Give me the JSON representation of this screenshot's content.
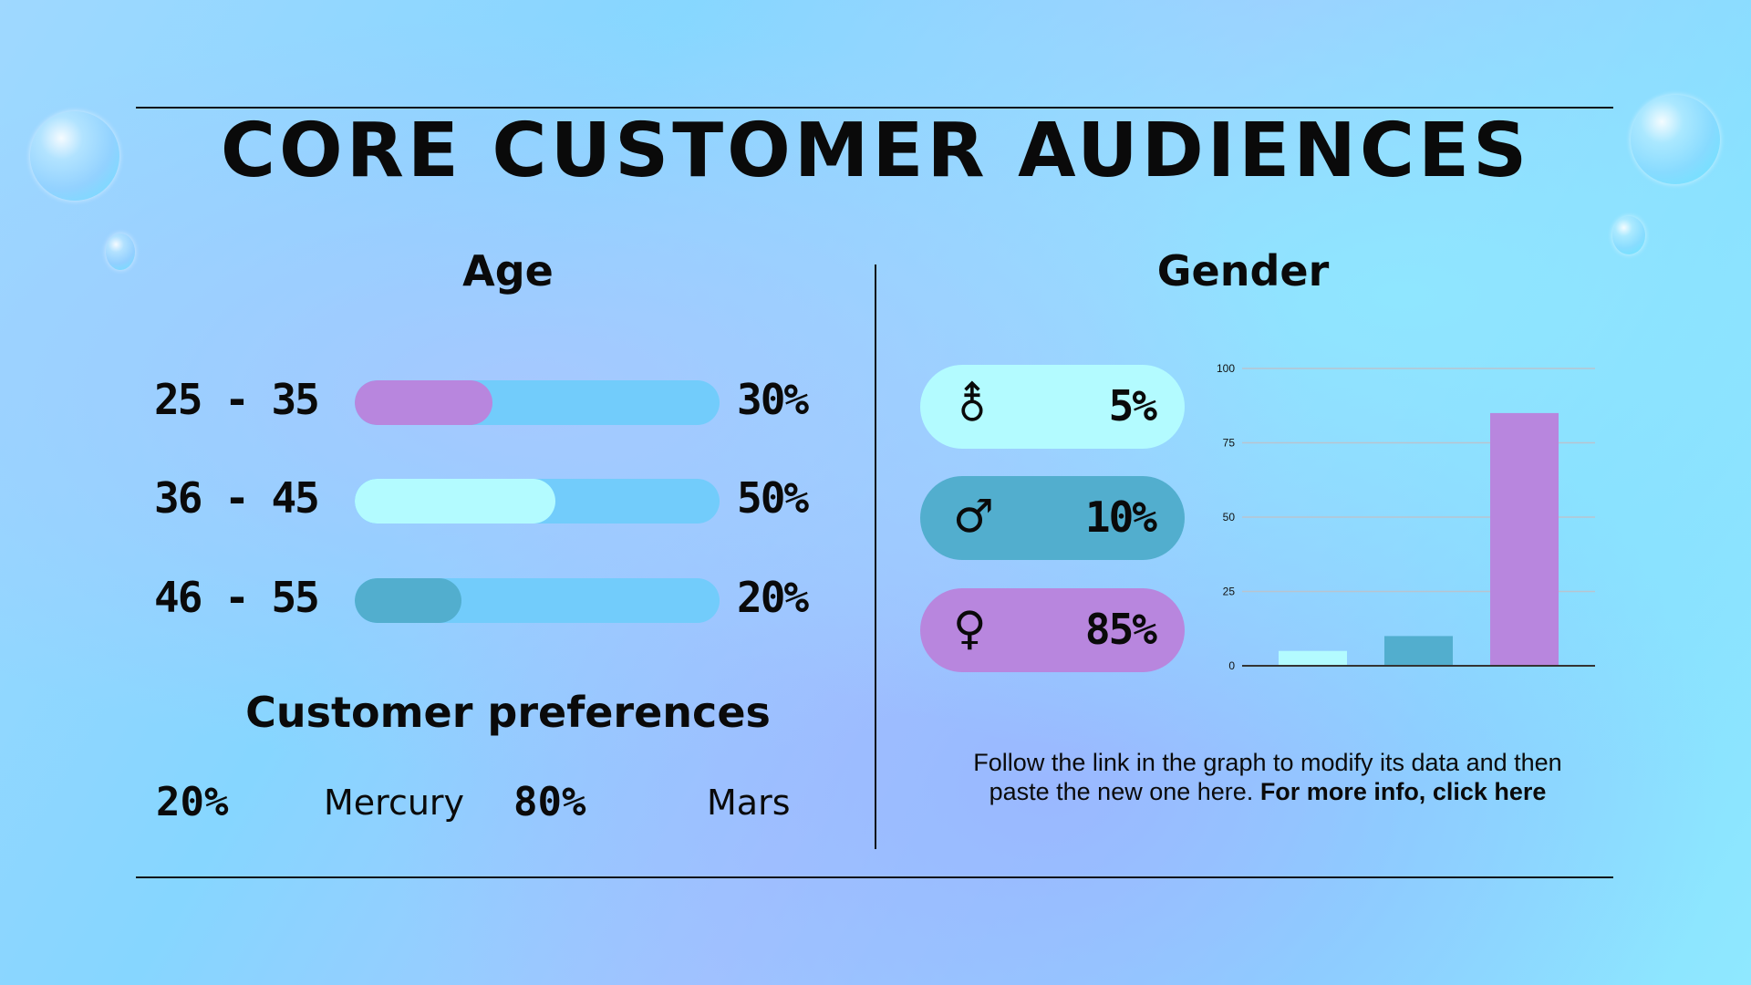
{
  "title": "CORE CUSTOMER AUDIENCES",
  "age": {
    "heading": "Age",
    "rows": [
      {
        "label": "25 - 35",
        "value": 30,
        "display": "30%",
        "color": "#b886de"
      },
      {
        "label": "36 - 45",
        "value": 50,
        "display": "50%",
        "color": "#b3fbff"
      },
      {
        "label": "46 - 55",
        "value": 20,
        "display": "20%",
        "color": "#52aece"
      }
    ]
  },
  "preferences": {
    "heading": "Customer preferences",
    "items": [
      {
        "value": "20%",
        "label": "Mercury"
      },
      {
        "value": "80%",
        "label": "Mars"
      }
    ]
  },
  "gender": {
    "heading": "Gender",
    "items": [
      {
        "icon": "non-binary-icon",
        "glyph": "⚨",
        "display": "5%",
        "color": "#b3fbff"
      },
      {
        "icon": "male-icon",
        "glyph": "♂",
        "display": "10%",
        "color": "#52aece"
      },
      {
        "icon": "female-icon",
        "glyph": "♀",
        "display": "85%",
        "color": "#b886de"
      }
    ]
  },
  "chart_data": {
    "type": "bar",
    "categories": [
      "",
      "",
      ""
    ],
    "values": [
      5,
      10,
      85
    ],
    "colors": [
      "#b3fbff",
      "#52aece",
      "#b886de"
    ],
    "ylim": [
      0,
      100
    ],
    "yticks": [
      "0",
      "25",
      "50",
      "75",
      "100"
    ],
    "grid": true
  },
  "footer": {
    "text": "Follow the link in the graph to modify its data and then paste the new one here. ",
    "bold": "For more info, click here"
  },
  "colors": {
    "track": "#72ccfb"
  }
}
